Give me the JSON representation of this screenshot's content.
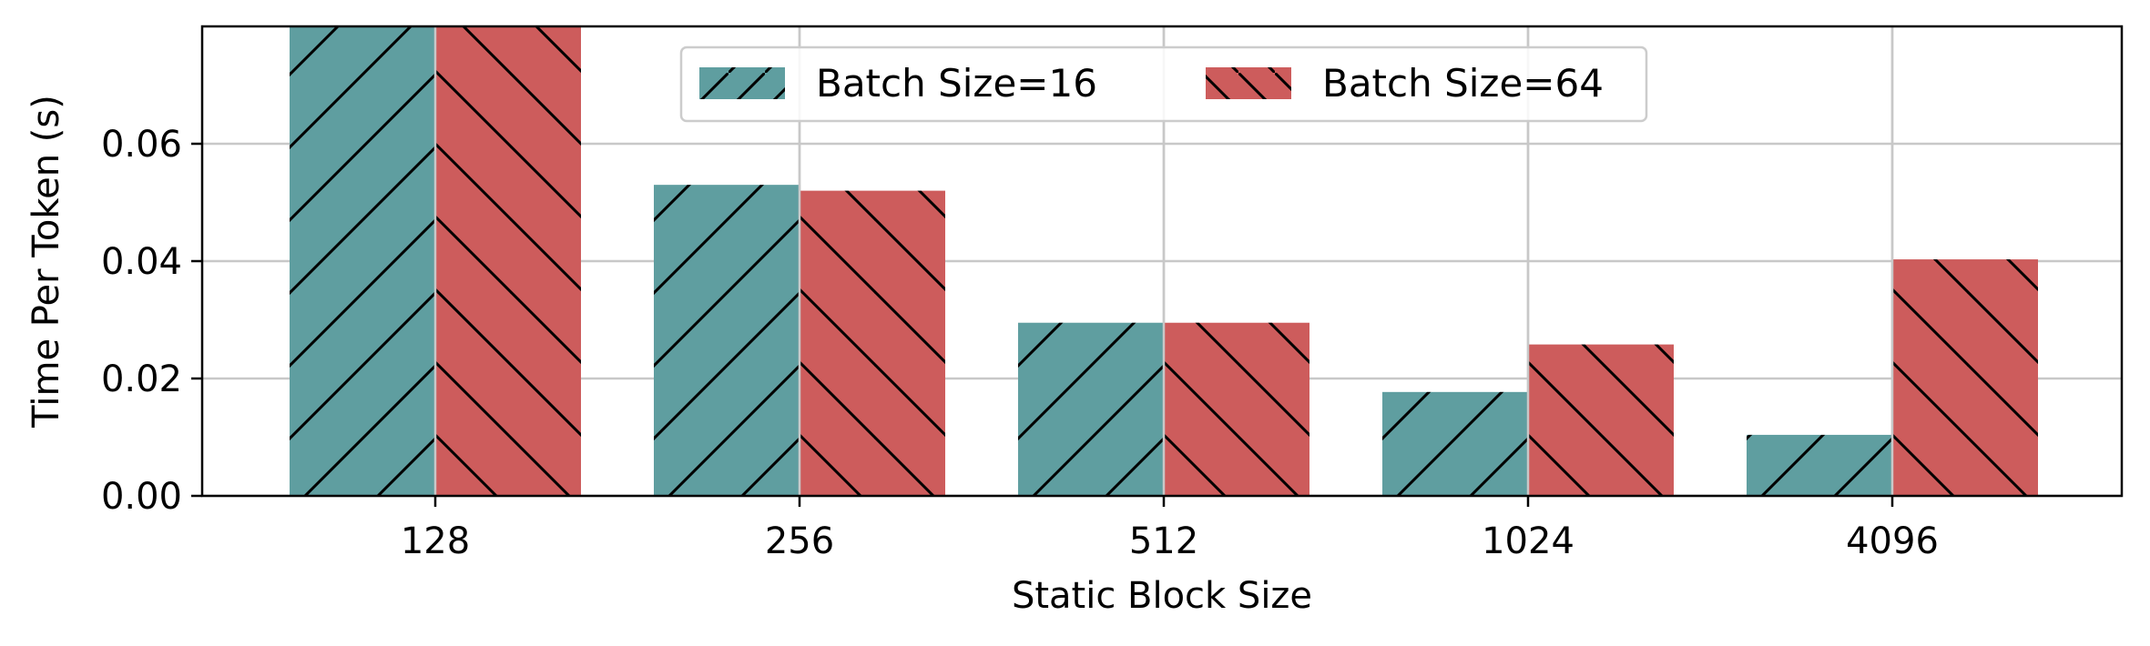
{
  "chart_data": {
    "type": "bar",
    "title": "",
    "xlabel": "Static Block Size",
    "ylabel": "Time Per Token (s)",
    "categories": [
      "128",
      "256",
      "512",
      "1024",
      "4096"
    ],
    "series": [
      {
        "name": "Batch Size=16",
        "values": [
          0.085,
          0.053,
          0.0295,
          0.0177,
          0.0104
        ],
        "color": "#5f9ea0",
        "hatch": "forward-diagonal"
      },
      {
        "name": "Batch Size=64",
        "values": [
          0.085,
          0.052,
          0.0295,
          0.0258,
          0.0403
        ],
        "color": "#cd5c5c",
        "hatch": "back-diagonal"
      }
    ],
    "ylim": [
      0,
      0.08
    ],
    "yticks": [
      "0.00",
      "0.02",
      "0.04",
      "0.06"
    ],
    "ytick_values": [
      0,
      0.02,
      0.04,
      0.06
    ],
    "grid": true,
    "legend_position": "top-center"
  }
}
